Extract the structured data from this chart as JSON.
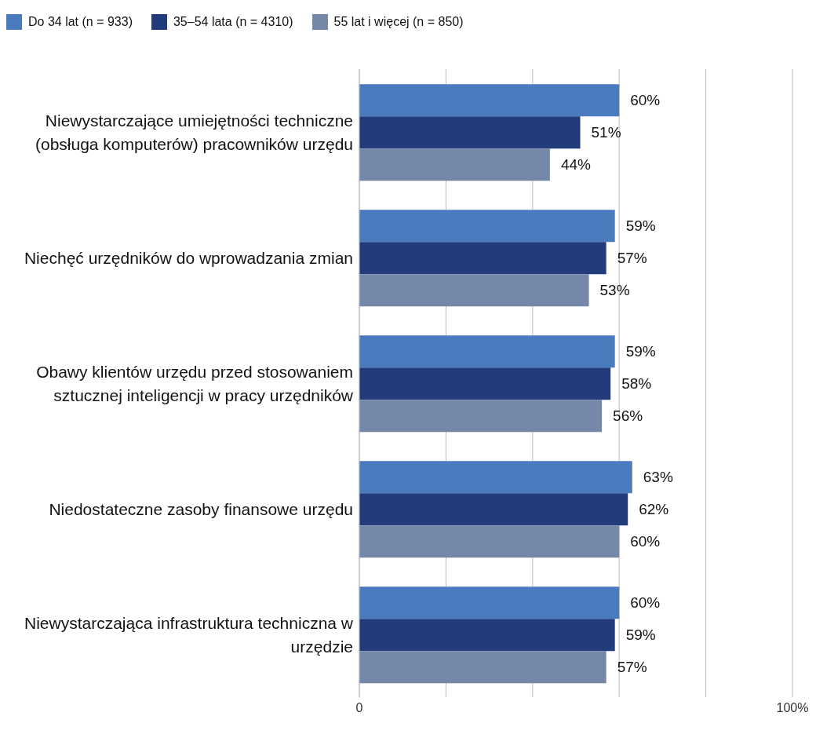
{
  "chart_data": {
    "type": "bar",
    "orientation": "horizontal",
    "categories": [
      "Niewystarczające umiejętności techniczne (obsługa komputerów) pracowników urzędu",
      "Niechęć urzędników do wprowadzania zmian",
      "Obawy klientów urzędu przed stosowaniem sztucznej inteligencji w pracy urzędników",
      "Niedostateczne zasoby finansowe urzędu",
      "Niewystarczająca infrastruktura techniczna w urzędzie"
    ],
    "series": [
      {
        "name": "Do 34 lat (n = 933)",
        "color": "#4a7bbf",
        "values": [
          60,
          59,
          59,
          63,
          60
        ],
        "value_labels": [
          "60%",
          "59%",
          "59%",
          "63%",
          "60%"
        ]
      },
      {
        "name": "35–54 lata (n = 4310)",
        "color": "#213b7b",
        "values": [
          51,
          57,
          58,
          62,
          59
        ],
        "value_labels": [
          "51%",
          "57%",
          "58%",
          "62%",
          "59%"
        ]
      },
      {
        "name": "55 lat i więcej (n = 850)",
        "color": "#7588aa",
        "values": [
          44,
          53,
          56,
          60,
          57
        ],
        "value_labels": [
          "44%",
          "53%",
          "56%",
          "60%",
          "57%"
        ]
      }
    ],
    "xlim": [
      0,
      100
    ],
    "xticks": [
      0,
      {
        "value": 20,
        "label": null
      },
      {
        "value": 40,
        "label": null
      },
      {
        "value": 60,
        "label": null
      },
      {
        "value": 80,
        "label": null
      },
      {
        "value": 100,
        "label": "100%"
      }
    ],
    "grid": "x",
    "legend": "top left"
  }
}
